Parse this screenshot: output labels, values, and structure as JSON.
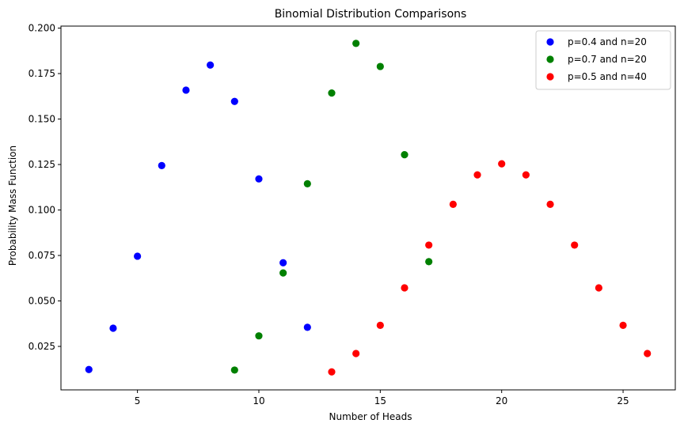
{
  "chart_data": {
    "type": "scatter",
    "title": "Binomial Distribution Comparisons",
    "xlabel": "Number of Heads",
    "ylabel": "Probability Mass Function",
    "xlim": [
      1.85,
      27.15
    ],
    "ylim": [
      0.0011,
      0.2011
    ],
    "xticks": [
      5,
      10,
      15,
      20,
      25
    ],
    "xtick_labels": [
      "5",
      "10",
      "15",
      "20",
      "25"
    ],
    "yticks": [
      0.025,
      0.05,
      0.075,
      0.1,
      0.125,
      0.15,
      0.175,
      0.2
    ],
    "ytick_labels": [
      "0.025",
      "0.050",
      "0.075",
      "0.100",
      "0.125",
      "0.150",
      "0.175",
      "0.200"
    ],
    "grid": false,
    "legend_position": "top-right",
    "series": [
      {
        "name": "p=0.4 and n=20",
        "color": "#0000ff",
        "x": [
          3,
          4,
          5,
          6,
          7,
          8,
          9,
          10,
          11,
          12
        ],
        "y": [
          0.0123,
          0.035,
          0.0746,
          0.1244,
          0.1659,
          0.1797,
          0.1597,
          0.1171,
          0.071,
          0.0355
        ]
      },
      {
        "name": "p=0.7 and n=20",
        "color": "#008000",
        "x": [
          9,
          10,
          11,
          12,
          13,
          14,
          15,
          16,
          17
        ],
        "y": [
          0.012,
          0.0308,
          0.0654,
          0.1144,
          0.1643,
          0.1916,
          0.1789,
          0.1304,
          0.0716
        ]
      },
      {
        "name": "p=0.5 and n=40",
        "color": "#ff0000",
        "x": [
          13,
          14,
          15,
          16,
          17,
          18,
          19,
          20,
          21,
          22,
          23,
          24,
          25,
          26
        ],
        "y": [
          0.011,
          0.0211,
          0.0366,
          0.0572,
          0.0807,
          0.1031,
          0.1193,
          0.1254,
          0.1193,
          0.1031,
          0.0807,
          0.0572,
          0.0366,
          0.0211
        ]
      }
    ]
  }
}
